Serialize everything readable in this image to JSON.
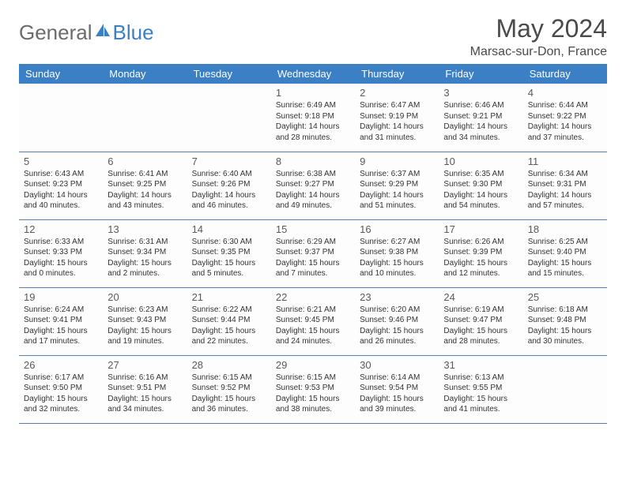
{
  "logo": {
    "text1": "General",
    "text2": "Blue"
  },
  "title": "May 2024",
  "location": "Marsac-sur-Don, France",
  "colors": {
    "header_bg": "#3b7fc4",
    "header_text": "#ffffff",
    "border": "#5a7fa8",
    "logo_gray": "#6b6b6b",
    "logo_blue": "#3b7fc4",
    "text": "#333333",
    "bg": "#ffffff"
  },
  "weekdays": [
    "Sunday",
    "Monday",
    "Tuesday",
    "Wednesday",
    "Thursday",
    "Friday",
    "Saturday"
  ],
  "weeks": [
    [
      null,
      null,
      null,
      {
        "n": "1",
        "sunrise": "6:49 AM",
        "sunset": "9:18 PM",
        "daylight": "14 hours and 28 minutes."
      },
      {
        "n": "2",
        "sunrise": "6:47 AM",
        "sunset": "9:19 PM",
        "daylight": "14 hours and 31 minutes."
      },
      {
        "n": "3",
        "sunrise": "6:46 AM",
        "sunset": "9:21 PM",
        "daylight": "14 hours and 34 minutes."
      },
      {
        "n": "4",
        "sunrise": "6:44 AM",
        "sunset": "9:22 PM",
        "daylight": "14 hours and 37 minutes."
      }
    ],
    [
      {
        "n": "5",
        "sunrise": "6:43 AM",
        "sunset": "9:23 PM",
        "daylight": "14 hours and 40 minutes."
      },
      {
        "n": "6",
        "sunrise": "6:41 AM",
        "sunset": "9:25 PM",
        "daylight": "14 hours and 43 minutes."
      },
      {
        "n": "7",
        "sunrise": "6:40 AM",
        "sunset": "9:26 PM",
        "daylight": "14 hours and 46 minutes."
      },
      {
        "n": "8",
        "sunrise": "6:38 AM",
        "sunset": "9:27 PM",
        "daylight": "14 hours and 49 minutes."
      },
      {
        "n": "9",
        "sunrise": "6:37 AM",
        "sunset": "9:29 PM",
        "daylight": "14 hours and 51 minutes."
      },
      {
        "n": "10",
        "sunrise": "6:35 AM",
        "sunset": "9:30 PM",
        "daylight": "14 hours and 54 minutes."
      },
      {
        "n": "11",
        "sunrise": "6:34 AM",
        "sunset": "9:31 PM",
        "daylight": "14 hours and 57 minutes."
      }
    ],
    [
      {
        "n": "12",
        "sunrise": "6:33 AM",
        "sunset": "9:33 PM",
        "daylight": "15 hours and 0 minutes."
      },
      {
        "n": "13",
        "sunrise": "6:31 AM",
        "sunset": "9:34 PM",
        "daylight": "15 hours and 2 minutes."
      },
      {
        "n": "14",
        "sunrise": "6:30 AM",
        "sunset": "9:35 PM",
        "daylight": "15 hours and 5 minutes."
      },
      {
        "n": "15",
        "sunrise": "6:29 AM",
        "sunset": "9:37 PM",
        "daylight": "15 hours and 7 minutes."
      },
      {
        "n": "16",
        "sunrise": "6:27 AM",
        "sunset": "9:38 PM",
        "daylight": "15 hours and 10 minutes."
      },
      {
        "n": "17",
        "sunrise": "6:26 AM",
        "sunset": "9:39 PM",
        "daylight": "15 hours and 12 minutes."
      },
      {
        "n": "18",
        "sunrise": "6:25 AM",
        "sunset": "9:40 PM",
        "daylight": "15 hours and 15 minutes."
      }
    ],
    [
      {
        "n": "19",
        "sunrise": "6:24 AM",
        "sunset": "9:41 PM",
        "daylight": "15 hours and 17 minutes."
      },
      {
        "n": "20",
        "sunrise": "6:23 AM",
        "sunset": "9:43 PM",
        "daylight": "15 hours and 19 minutes."
      },
      {
        "n": "21",
        "sunrise": "6:22 AM",
        "sunset": "9:44 PM",
        "daylight": "15 hours and 22 minutes."
      },
      {
        "n": "22",
        "sunrise": "6:21 AM",
        "sunset": "9:45 PM",
        "daylight": "15 hours and 24 minutes."
      },
      {
        "n": "23",
        "sunrise": "6:20 AM",
        "sunset": "9:46 PM",
        "daylight": "15 hours and 26 minutes."
      },
      {
        "n": "24",
        "sunrise": "6:19 AM",
        "sunset": "9:47 PM",
        "daylight": "15 hours and 28 minutes."
      },
      {
        "n": "25",
        "sunrise": "6:18 AM",
        "sunset": "9:48 PM",
        "daylight": "15 hours and 30 minutes."
      }
    ],
    [
      {
        "n": "26",
        "sunrise": "6:17 AM",
        "sunset": "9:50 PM",
        "daylight": "15 hours and 32 minutes."
      },
      {
        "n": "27",
        "sunrise": "6:16 AM",
        "sunset": "9:51 PM",
        "daylight": "15 hours and 34 minutes."
      },
      {
        "n": "28",
        "sunrise": "6:15 AM",
        "sunset": "9:52 PM",
        "daylight": "15 hours and 36 minutes."
      },
      {
        "n": "29",
        "sunrise": "6:15 AM",
        "sunset": "9:53 PM",
        "daylight": "15 hours and 38 minutes."
      },
      {
        "n": "30",
        "sunrise": "6:14 AM",
        "sunset": "9:54 PM",
        "daylight": "15 hours and 39 minutes."
      },
      {
        "n": "31",
        "sunrise": "6:13 AM",
        "sunset": "9:55 PM",
        "daylight": "15 hours and 41 minutes."
      },
      null
    ]
  ],
  "labels": {
    "sunrise": "Sunrise:",
    "sunset": "Sunset:",
    "daylight": "Daylight:"
  }
}
